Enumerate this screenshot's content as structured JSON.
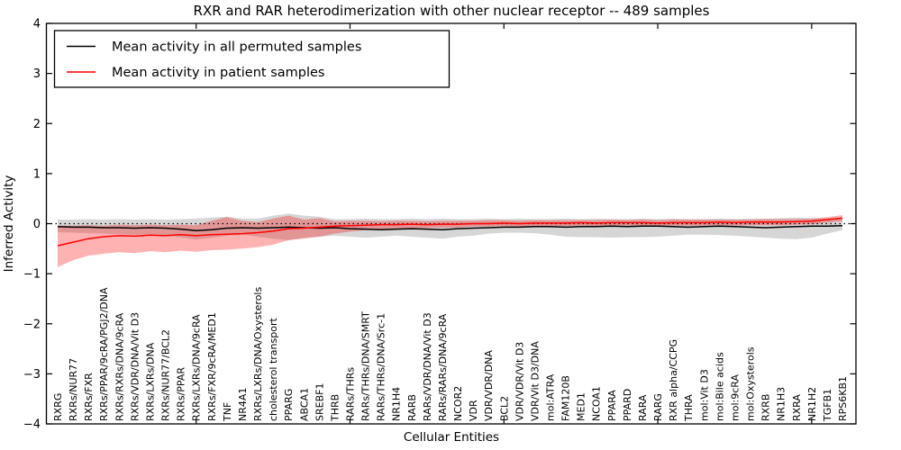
{
  "title": "RXR and RAR heterodimerization with other nuclear receptor -- 489 samples",
  "axes": {
    "x_label": "Cellular Entities",
    "y_label": "Inferred Activity",
    "y_tick_labels": [
      "4",
      "3",
      "2",
      "1",
      "0",
      "−1",
      "−2",
      "−3",
      "−4"
    ],
    "y_tick_values": [
      4,
      3,
      2,
      1,
      0,
      -1,
      -2,
      -3,
      -4
    ]
  },
  "legend": {
    "items": [
      {
        "label": "Mean activity in all permuted samples",
        "color": "#000000"
      },
      {
        "label": "Mean activity in patient samples",
        "color": "#ff0000"
      }
    ]
  },
  "chart_data": {
    "type": "line",
    "title": "RXR and RAR heterodimerization with other nuclear receptor -- 489 samples",
    "xlabel": "Cellular Entities",
    "ylabel": "Inferred Activity",
    "ylim": [
      -4,
      4
    ],
    "grid": false,
    "legend_position": "upper left",
    "zero_line": 0,
    "x_major_tick_indices": [
      9,
      19,
      29,
      39,
      49
    ],
    "categories": [
      "RXRG",
      "RXRs/NUR77",
      "RXRs/FXR",
      "RXRs/PPAR/9cRA/PGJ2/DNA",
      "RXRs/RXRs/DNA/9cRA",
      "RXRs/VDR/DNA/Vit D3",
      "RXRs/LXRs/DNA",
      "RXRs/NUR77/BCL2",
      "RXRs/PPAR",
      "RXRs/LXRs/DNA/9cRA",
      "RXRs/FXR/9cRA/MED1",
      "TNF",
      "NR4A1",
      "RXRs/LXRs/DNA/Oxysterols",
      "cholesterol transport",
      "PPARG",
      "ABCA1",
      "SREBF1",
      "THRB",
      "RARs/THRs",
      "RARs/THRs/DNA/SMRT",
      "RARs/THRs/DNA/Src-1",
      "NR1H4",
      "RARB",
      "RARs/VDR/DNA/Vit D3",
      "RARs/RARs/DNA/9cRA",
      "NCOR2",
      "VDR",
      "VDR/VDR/DNA",
      "BCL2",
      "VDR/VDR/Vit D3",
      "VDR/Vit D3/DNA",
      "mol:ATRA",
      "FAM120B",
      "MED1",
      "NCOA1",
      "PPARA",
      "PPARD",
      "RARA",
      "RARG",
      "RXR alpha/CCPG",
      "THRA",
      "mol:Vit D3",
      "mol:Bile acids",
      "mol:9cRA",
      "mol:Oxysterols",
      "RXRB",
      "NR1H3",
      "RXRA",
      "NR1H2",
      "TGFB1",
      "RPS6KB1"
    ],
    "series": [
      {
        "name": "Mean activity in all permuted samples",
        "color": "#000000",
        "values": [
          -0.06,
          -0.07,
          -0.07,
          -0.08,
          -0.08,
          -0.09,
          -0.08,
          -0.09,
          -0.11,
          -0.14,
          -0.12,
          -0.09,
          -0.08,
          -0.09,
          -0.08,
          -0.07,
          -0.08,
          -0.09,
          -0.08,
          -0.1,
          -0.11,
          -0.12,
          -0.11,
          -0.1,
          -0.11,
          -0.12,
          -0.1,
          -0.09,
          -0.08,
          -0.07,
          -0.07,
          -0.06,
          -0.06,
          -0.07,
          -0.06,
          -0.06,
          -0.05,
          -0.06,
          -0.05,
          -0.05,
          -0.06,
          -0.07,
          -0.06,
          -0.05,
          -0.06,
          -0.07,
          -0.08,
          -0.07,
          -0.06,
          -0.05,
          -0.05,
          -0.04
        ]
      },
      {
        "name": "Mean activity in patient samples",
        "color": "#ff0000",
        "values": [
          -0.44,
          -0.37,
          -0.3,
          -0.26,
          -0.24,
          -0.25,
          -0.23,
          -0.24,
          -0.22,
          -0.24,
          -0.22,
          -0.21,
          -0.2,
          -0.18,
          -0.15,
          -0.1,
          -0.09,
          -0.07,
          -0.05,
          -0.04,
          -0.03,
          -0.02,
          -0.02,
          -0.01,
          -0.02,
          -0.01,
          -0.01,
          0.0,
          0.0,
          0.01,
          0.0,
          0.01,
          0.01,
          0.01,
          0.02,
          0.01,
          0.02,
          0.02,
          0.02,
          0.01,
          0.02,
          0.02,
          0.02,
          0.03,
          0.02,
          0.03,
          0.03,
          0.03,
          0.04,
          0.05,
          0.08,
          0.11
        ]
      }
    ],
    "bands": [
      {
        "name": "permuted-samples-range",
        "color": "rgba(0,0,0,0.16)",
        "upper": [
          0.08,
          0.08,
          0.09,
          0.08,
          0.09,
          0.08,
          0.09,
          0.08,
          0.09,
          0.1,
          0.12,
          0.14,
          0.1,
          0.1,
          0.16,
          0.2,
          0.16,
          0.14,
          0.09,
          0.09,
          0.1,
          0.09,
          0.09,
          0.1,
          0.09,
          0.1,
          0.09,
          0.09,
          0.1,
          0.09,
          0.1,
          0.09,
          0.09,
          0.1,
          0.09,
          0.1,
          0.09,
          0.09,
          0.1,
          0.09,
          0.1,
          0.09,
          0.09,
          0.1,
          0.09,
          0.1,
          0.1,
          0.11,
          0.12,
          0.11,
          0.1,
          0.12
        ],
        "lower": [
          -0.17,
          -0.18,
          -0.19,
          -0.2,
          -0.21,
          -0.22,
          -0.21,
          -0.23,
          -0.27,
          -0.32,
          -0.28,
          -0.24,
          -0.22,
          -0.26,
          -0.3,
          -0.33,
          -0.28,
          -0.26,
          -0.24,
          -0.26,
          -0.28,
          -0.26,
          -0.24,
          -0.26,
          -0.28,
          -0.3,
          -0.26,
          -0.24,
          -0.2,
          -0.18,
          -0.18,
          -0.19,
          -0.22,
          -0.26,
          -0.27,
          -0.27,
          -0.28,
          -0.27,
          -0.27,
          -0.26,
          -0.24,
          -0.22,
          -0.22,
          -0.23,
          -0.24,
          -0.26,
          -0.28,
          -0.3,
          -0.31,
          -0.28,
          -0.2,
          -0.13
        ]
      },
      {
        "name": "patient-samples-range",
        "color": "rgba(255,0,0,0.30)",
        "upper": [
          -0.04,
          -0.04,
          -0.03,
          -0.04,
          -0.02,
          -0.03,
          -0.02,
          -0.03,
          -0.02,
          -0.03,
          0.06,
          0.13,
          0.06,
          0.03,
          0.1,
          0.16,
          0.08,
          0.11,
          0.05,
          0.06,
          0.06,
          0.05,
          0.06,
          0.06,
          0.05,
          0.06,
          0.06,
          0.06,
          0.07,
          0.07,
          0.06,
          0.07,
          0.07,
          0.07,
          0.07,
          0.07,
          0.08,
          0.07,
          0.08,
          0.07,
          0.08,
          0.08,
          0.08,
          0.08,
          0.08,
          0.08,
          0.09,
          0.09,
          0.09,
          0.1,
          0.13,
          0.17
        ],
        "lower": [
          -0.87,
          -0.73,
          -0.64,
          -0.6,
          -0.57,
          -0.59,
          -0.55,
          -0.57,
          -0.54,
          -0.56,
          -0.53,
          -0.52,
          -0.5,
          -0.47,
          -0.42,
          -0.33,
          -0.3,
          -0.26,
          -0.2,
          -0.16,
          -0.13,
          -0.11,
          -0.1,
          -0.09,
          -0.09,
          -0.08,
          -0.08,
          -0.06,
          -0.06,
          -0.05,
          -0.06,
          -0.05,
          -0.05,
          -0.05,
          -0.04,
          -0.05,
          -0.04,
          -0.04,
          -0.04,
          -0.05,
          -0.04,
          -0.04,
          -0.04,
          -0.03,
          -0.04,
          -0.03,
          -0.03,
          -0.03,
          -0.02,
          -0.01,
          0.02,
          0.05
        ]
      }
    ]
  }
}
